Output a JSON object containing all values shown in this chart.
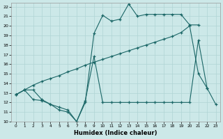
{
  "xlabel": "Humidex (Indice chaleur)",
  "bg_color": "#cce8e8",
  "grid_color": "#b0d4d4",
  "line_color": "#1a6666",
  "xlim": [
    -0.5,
    23.5
  ],
  "ylim": [
    10,
    22.4
  ],
  "xticks": [
    0,
    1,
    2,
    3,
    4,
    5,
    6,
    7,
    8,
    9,
    10,
    11,
    12,
    13,
    14,
    15,
    16,
    17,
    18,
    19,
    20,
    21,
    22,
    23
  ],
  "yticks": [
    10,
    11,
    12,
    13,
    14,
    15,
    16,
    17,
    18,
    19,
    20,
    21,
    22
  ],
  "line1_x": [
    0,
    1,
    2,
    3,
    4,
    5,
    6,
    7,
    8,
    9,
    10,
    11,
    12,
    13,
    14,
    15,
    16,
    17,
    18,
    19,
    20,
    21
  ],
  "line1_y": [
    12.8,
    13.3,
    13.3,
    12.3,
    11.8,
    11.2,
    11.0,
    10.0,
    12.0,
    19.2,
    21.1,
    20.5,
    20.7,
    22.3,
    21.0,
    21.2,
    21.2,
    21.2,
    21.2,
    21.2,
    20.1,
    20.1
  ],
  "line2_x": [
    0,
    1,
    2,
    3,
    4,
    5,
    6,
    7,
    8,
    9,
    10,
    11,
    12,
    13,
    14,
    15,
    16,
    17,
    18,
    19,
    20,
    21,
    22
  ],
  "line2_y": [
    12.8,
    13.3,
    13.8,
    14.2,
    14.5,
    14.8,
    15.2,
    15.5,
    15.9,
    16.2,
    16.5,
    16.8,
    17.1,
    17.4,
    17.7,
    18.0,
    18.3,
    18.6,
    18.9,
    19.3,
    20.0,
    15.0,
    13.5
  ],
  "line3_x": [
    0,
    1,
    2,
    3,
    4,
    5,
    6,
    7,
    8,
    9,
    10,
    11,
    12,
    13,
    14,
    15,
    16,
    17,
    18,
    19,
    20,
    21,
    22,
    23
  ],
  "line3_y": [
    12.8,
    13.3,
    12.3,
    12.2,
    11.8,
    11.5,
    11.2,
    10.0,
    12.2,
    16.8,
    12.0,
    12.0,
    12.0,
    12.0,
    12.0,
    12.0,
    12.0,
    12.0,
    12.0,
    12.0,
    12.0,
    18.5,
    13.5,
    11.8
  ]
}
